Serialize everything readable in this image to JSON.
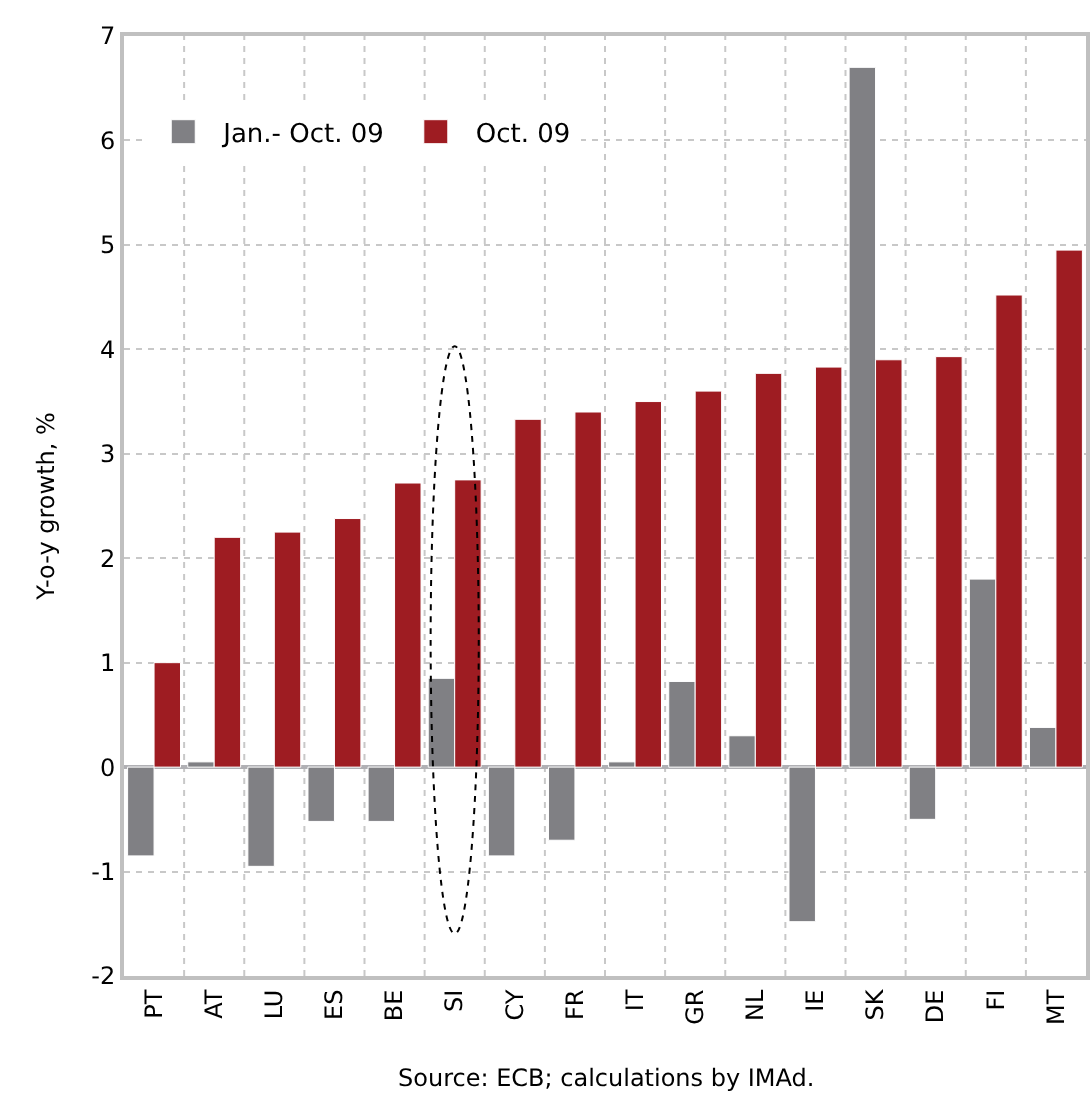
{
  "chart_data": {
    "type": "bar",
    "ylabel": "Y-o-y growth, %",
    "categories": [
      "PT",
      "AT",
      "LU",
      "ES",
      "BE",
      "SI",
      "CY",
      "FR",
      "IT",
      "GR",
      "NL",
      "IE",
      "SK",
      "DE",
      "FI",
      "MT"
    ],
    "series": [
      {
        "name": "Jan.- Oct. 09",
        "color": "#808084",
        "values": [
          -0.85,
          0.05,
          -0.95,
          -0.52,
          -0.52,
          0.85,
          -0.85,
          -0.7,
          0.05,
          0.82,
          0.3,
          -1.48,
          6.7,
          -0.5,
          1.8,
          0.38
        ]
      },
      {
        "name": "Oct. 09",
        "color": "#9e1c22",
        "values": [
          1.0,
          2.2,
          2.25,
          2.38,
          2.72,
          2.75,
          3.33,
          3.4,
          3.5,
          3.6,
          3.77,
          3.83,
          3.9,
          3.93,
          4.52,
          4.95
        ]
      }
    ],
    "ylim": [
      -2,
      7
    ],
    "yticks": [
      -2,
      -1,
      0,
      1,
      2,
      3,
      4,
      5,
      6,
      7
    ],
    "grid": true,
    "legend": "top left",
    "annotations": [
      "Source: ECB; calculations by IMAd."
    ]
  }
}
